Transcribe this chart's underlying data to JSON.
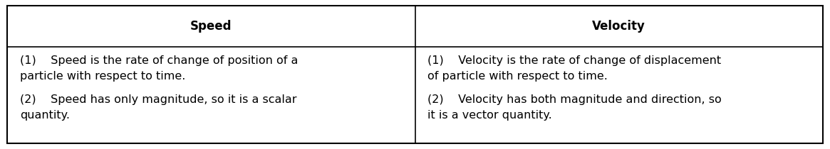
{
  "title_left": "Speed",
  "title_right": "Velocity",
  "left_line1a": "(1)    Speed is the rate of change of position of a",
  "left_line1b": "particle with respect to time.",
  "left_line2a": "(2)    Speed has only magnitude, so it is a scalar",
  "left_line2b": "quantity.",
  "right_line1a": "(1)    Velocity is the rate of change of displacement",
  "right_line1b": "of particle with respect to time.",
  "right_line2a": "(2)    Velocity has both magnitude and direction, so",
  "right_line2b": "it is a vector quantity.",
  "bg_color": "#ffffff",
  "border_color": "#000000",
  "text_color": "#000000",
  "header_fontsize": 12,
  "body_fontsize": 11.5,
  "fig_width": 11.65,
  "fig_height": 2.1,
  "dpi": 100
}
